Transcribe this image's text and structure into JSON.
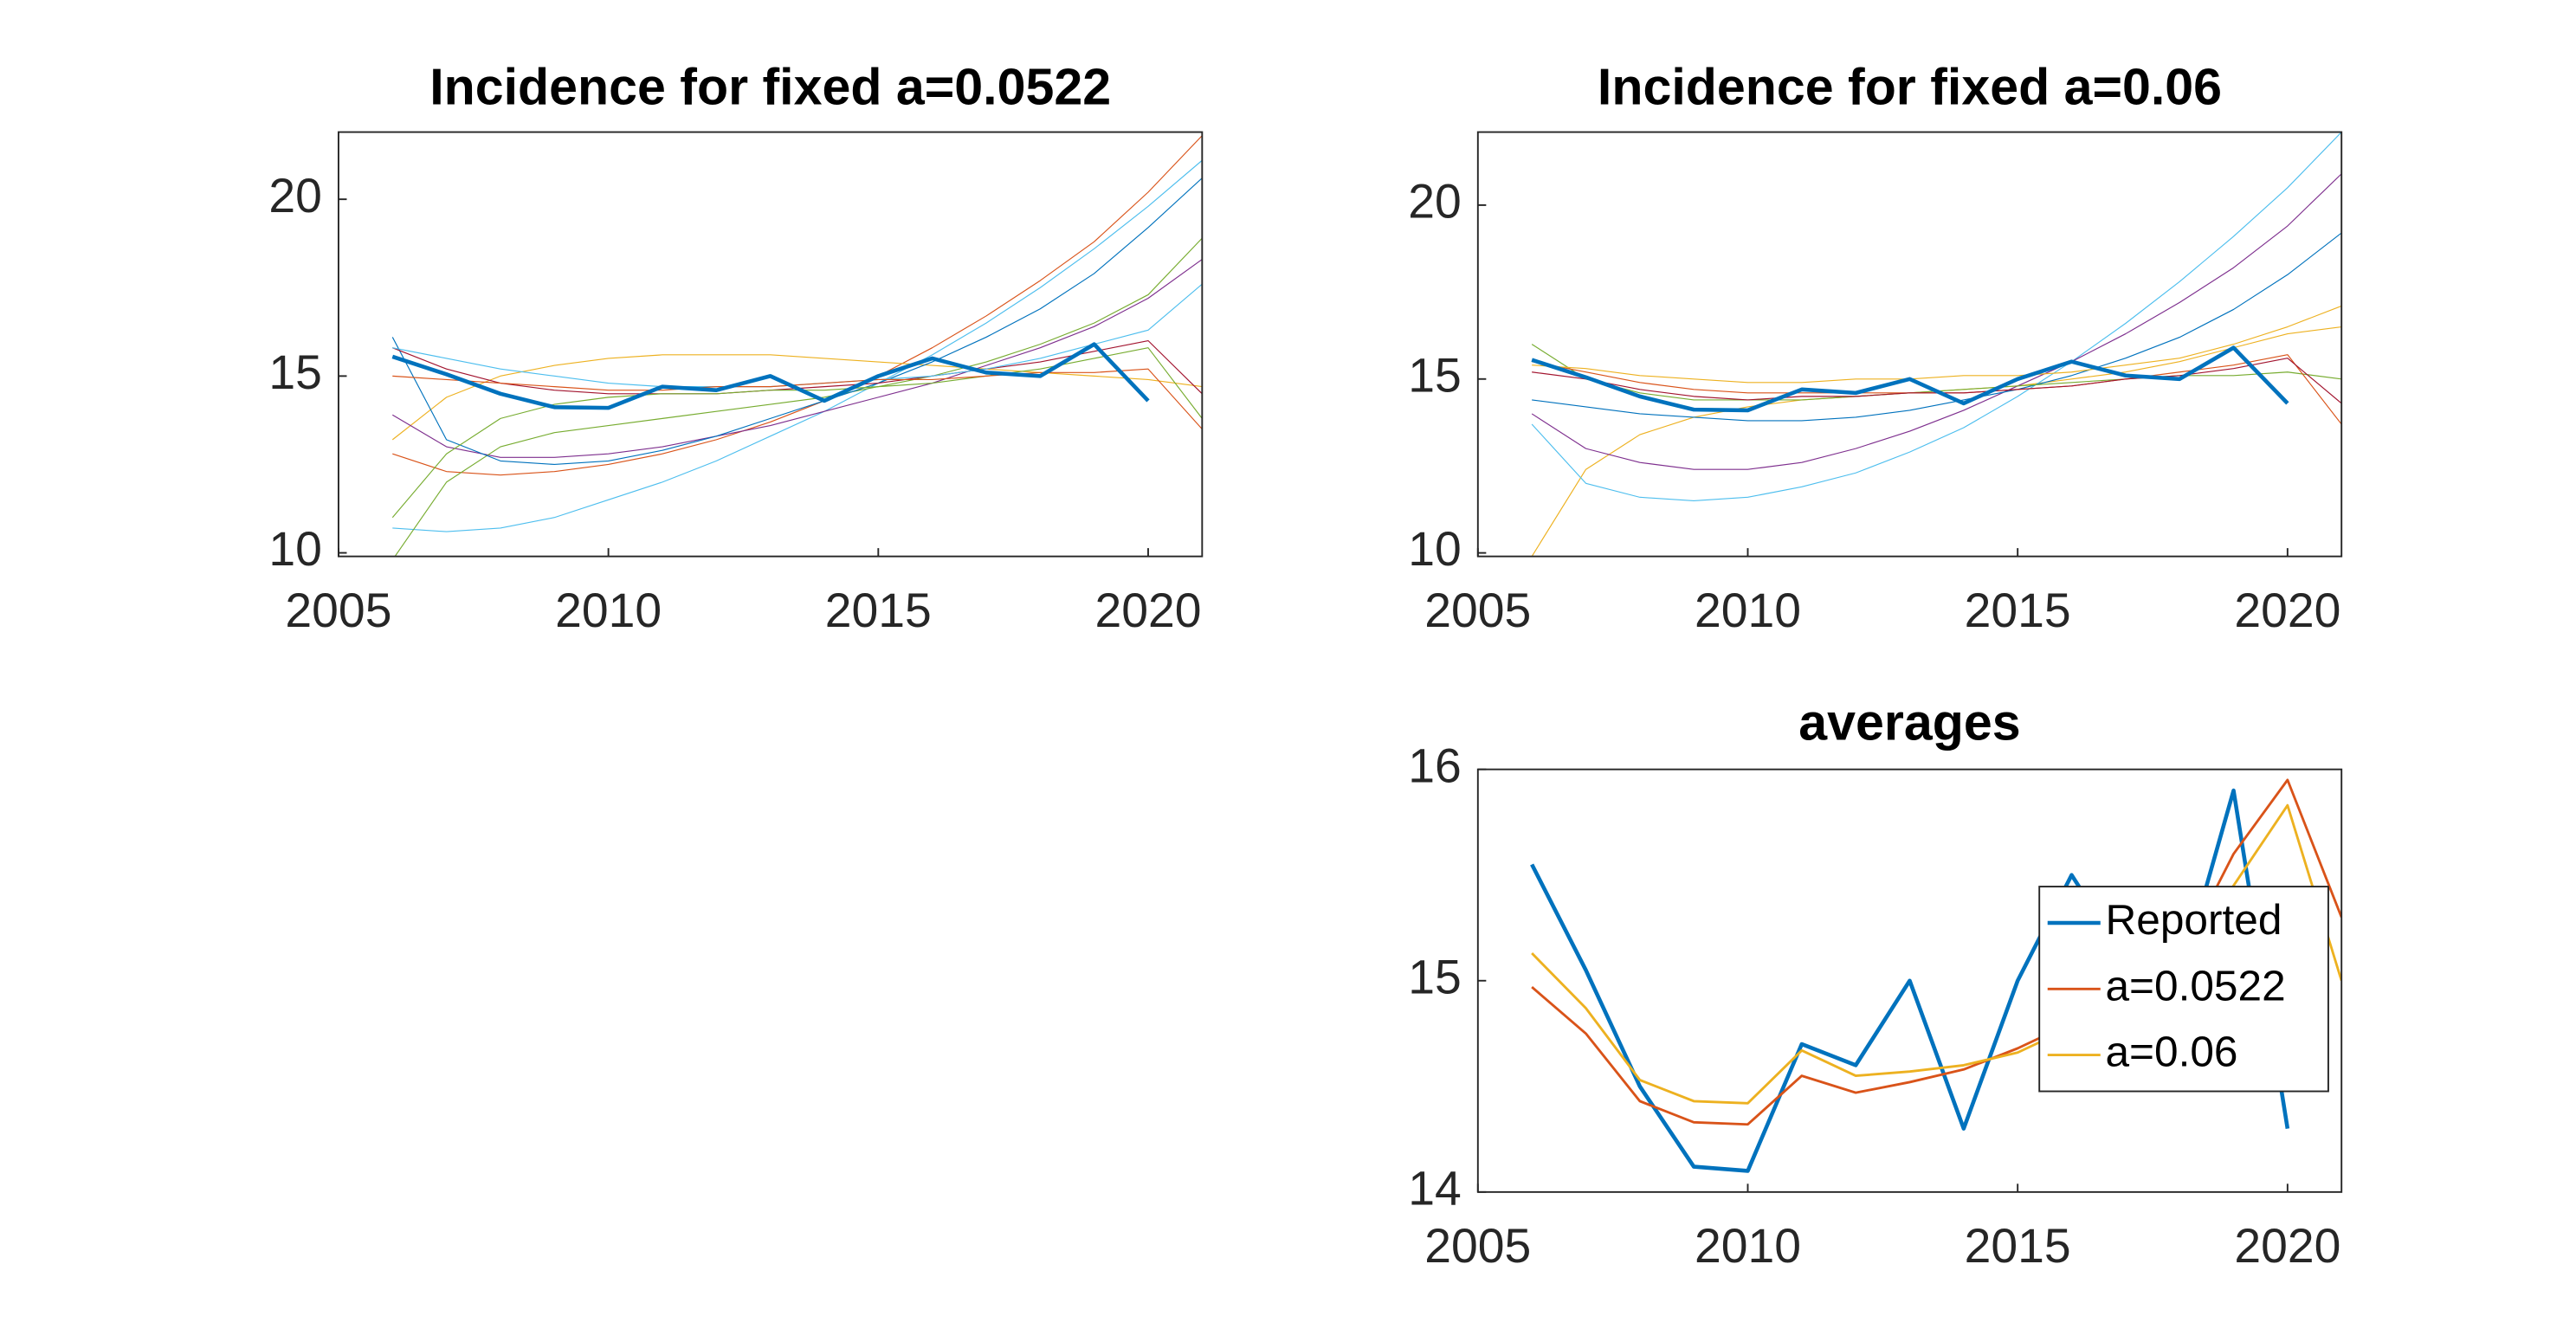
{
  "chart_data": [
    {
      "type": "line",
      "title": "Incidence for fixed a=0.0522",
      "x": [
        2006,
        2007,
        2008,
        2009,
        2010,
        2011,
        2012,
        2013,
        2014,
        2015,
        2016,
        2017,
        2018,
        2019,
        2020,
        2021
      ],
      "xlim": [
        2005,
        2021
      ],
      "ylim": [
        9.9,
        21.9
      ],
      "xticks": [
        2005,
        2010,
        2015,
        2020
      ],
      "yticks": [
        10,
        15,
        20
      ],
      "series": [
        {
          "color": "#0072BD",
          "values": [
            15.55,
            15.05,
            14.5,
            14.12,
            14.1,
            14.7,
            14.6,
            15.0,
            14.3,
            15.0,
            15.5,
            15.1,
            15.0,
            15.9,
            14.3,
            null
          ]
        },
        {
          "color": "#4DBEEE",
          "values": [
            10.7,
            10.6,
            10.7,
            11.0,
            11.5,
            12.0,
            12.6,
            13.3,
            14.0,
            14.8,
            15.6,
            16.5,
            17.5,
            18.6,
            19.8,
            21.1
          ]
        },
        {
          "color": "#D95319",
          "values": [
            12.8,
            12.3,
            12.2,
            12.3,
            12.5,
            12.8,
            13.2,
            13.7,
            14.3,
            15.0,
            15.8,
            16.7,
            17.7,
            18.8,
            20.2,
            21.8
          ]
        },
        {
          "color": "#EDB120",
          "values": [
            13.2,
            14.4,
            15.0,
            15.3,
            15.5,
            15.6,
            15.6,
            15.6,
            15.5,
            15.4,
            15.3,
            15.2,
            15.1,
            15.0,
            14.9,
            14.7
          ]
        },
        {
          "color": "#7E2F8E",
          "values": [
            13.9,
            13.0,
            12.7,
            12.7,
            12.8,
            13.0,
            13.3,
            13.6,
            14.0,
            14.4,
            14.8,
            15.3,
            15.8,
            16.4,
            17.2,
            18.3
          ]
        },
        {
          "color": "#77AC30",
          "values": [
            9.8,
            12.0,
            13.0,
            13.4,
            13.6,
            13.8,
            14.0,
            14.2,
            14.4,
            14.7,
            15.0,
            15.4,
            15.9,
            16.5,
            17.3,
            18.9
          ]
        },
        {
          "color": "#0072BD",
          "values": [
            16.1,
            13.2,
            12.6,
            12.5,
            12.6,
            12.9,
            13.3,
            13.8,
            14.3,
            14.8,
            15.4,
            16.1,
            16.9,
            17.9,
            19.2,
            20.6
          ]
        },
        {
          "color": "#A2142F",
          "values": [
            15.8,
            15.2,
            14.8,
            14.6,
            14.5,
            14.5,
            14.5,
            14.6,
            14.7,
            14.8,
            15.0,
            15.2,
            15.4,
            15.7,
            16.0,
            14.5
          ]
        },
        {
          "color": "#77AC30",
          "values": [
            11.0,
            12.8,
            13.8,
            14.2,
            14.4,
            14.5,
            14.5,
            14.6,
            14.6,
            14.7,
            14.8,
            15.0,
            15.2,
            15.5,
            15.8,
            13.8
          ]
        },
        {
          "color": "#4DBEEE",
          "values": [
            15.8,
            15.5,
            15.2,
            15.0,
            14.8,
            14.7,
            14.7,
            14.7,
            14.8,
            14.9,
            15.0,
            15.2,
            15.5,
            15.9,
            16.3,
            17.6
          ]
        },
        {
          "color": "#D95319",
          "values": [
            15.0,
            14.9,
            14.8,
            14.7,
            14.6,
            14.6,
            14.7,
            14.7,
            14.8,
            14.9,
            14.9,
            15.0,
            15.1,
            15.1,
            15.2,
            13.5
          ]
        }
      ]
    },
    {
      "type": "line",
      "title": "Incidence for fixed a=0.06",
      "x": [
        2006,
        2007,
        2008,
        2009,
        2010,
        2011,
        2012,
        2013,
        2014,
        2015,
        2016,
        2017,
        2018,
        2019,
        2020,
        2021
      ],
      "xlim": [
        2005,
        2021
      ],
      "ylim": [
        9.9,
        22.1
      ],
      "xticks": [
        2005,
        2010,
        2015,
        2020
      ],
      "yticks": [
        10,
        15,
        20
      ],
      "series": [
        {
          "color": "#0072BD",
          "values": [
            15.55,
            15.05,
            14.5,
            14.12,
            14.1,
            14.7,
            14.6,
            15.0,
            14.3,
            15.0,
            15.5,
            15.1,
            15.0,
            15.9,
            14.3,
            null
          ]
        },
        {
          "color": "#EDB120",
          "values": [
            9.9,
            12.4,
            13.4,
            13.9,
            14.2,
            14.4,
            14.5,
            14.6,
            14.7,
            14.8,
            15.0,
            15.2,
            15.5,
            15.9,
            16.3,
            16.5
          ]
        },
        {
          "color": "#4DBEEE",
          "values": [
            13.7,
            12.0,
            11.6,
            11.5,
            11.6,
            11.9,
            12.3,
            12.9,
            13.6,
            14.5,
            15.5,
            16.6,
            17.8,
            19.1,
            20.5,
            22.1
          ]
        },
        {
          "color": "#7E2F8E",
          "values": [
            14.0,
            13.0,
            12.6,
            12.4,
            12.4,
            12.6,
            13.0,
            13.5,
            14.1,
            14.8,
            15.5,
            16.3,
            17.2,
            18.2,
            19.4,
            20.9
          ]
        },
        {
          "color": "#0072BD",
          "values": [
            14.4,
            14.2,
            14.0,
            13.9,
            13.8,
            13.8,
            13.9,
            14.1,
            14.4,
            14.7,
            15.1,
            15.6,
            16.2,
            17.0,
            18.0,
            19.2
          ]
        },
        {
          "color": "#77AC30",
          "values": [
            16.0,
            15.0,
            14.6,
            14.4,
            14.4,
            14.4,
            14.5,
            14.6,
            14.7,
            14.8,
            14.9,
            15.0,
            15.1,
            15.1,
            15.2,
            15.0
          ]
        },
        {
          "color": "#D95319",
          "values": [
            15.5,
            15.2,
            14.9,
            14.7,
            14.6,
            14.6,
            14.6,
            14.6,
            14.6,
            14.7,
            14.8,
            15.0,
            15.2,
            15.4,
            15.7,
            13.7
          ]
        },
        {
          "color": "#A2142F",
          "values": [
            15.2,
            15.0,
            14.7,
            14.5,
            14.4,
            14.5,
            14.5,
            14.6,
            14.6,
            14.7,
            14.8,
            15.0,
            15.1,
            15.3,
            15.6,
            14.3
          ]
        },
        {
          "color": "#EDB120",
          "values": [
            15.4,
            15.3,
            15.1,
            15.0,
            14.9,
            14.9,
            15.0,
            15.0,
            15.1,
            15.1,
            15.2,
            15.4,
            15.6,
            16.0,
            16.5,
            17.1
          ]
        }
      ]
    },
    {
      "type": "line",
      "title": "averages",
      "x": [
        2006,
        2007,
        2008,
        2009,
        2010,
        2011,
        2012,
        2013,
        2014,
        2015,
        2016,
        2017,
        2018,
        2019,
        2020,
        2021
      ],
      "xlim": [
        2005,
        2021
      ],
      "ylim": [
        14,
        16
      ],
      "xticks": [
        2005,
        2010,
        2015,
        2020
      ],
      "yticks": [
        14,
        15,
        16
      ],
      "legend": "east",
      "series": [
        {
          "name": "Reported",
          "color": "#0072BD",
          "values": [
            15.55,
            15.05,
            14.5,
            14.12,
            14.1,
            14.7,
            14.6,
            15.0,
            14.3,
            15.0,
            15.5,
            15.1,
            15.0,
            15.9,
            14.3,
            null
          ]
        },
        {
          "name": "a=0.0522",
          "color": "#D95319",
          "values": [
            14.97,
            14.75,
            14.43,
            14.33,
            14.32,
            14.55,
            14.47,
            14.52,
            14.58,
            14.68,
            14.8,
            14.95,
            15.1,
            15.6,
            15.95,
            15.3
          ]
        },
        {
          "name": "a=0.06",
          "color": "#EDB120",
          "values": [
            15.13,
            14.87,
            14.53,
            14.43,
            14.42,
            14.67,
            14.55,
            14.57,
            14.6,
            14.66,
            14.78,
            14.9,
            15.05,
            15.45,
            15.83,
            15.0
          ]
        }
      ]
    }
  ]
}
